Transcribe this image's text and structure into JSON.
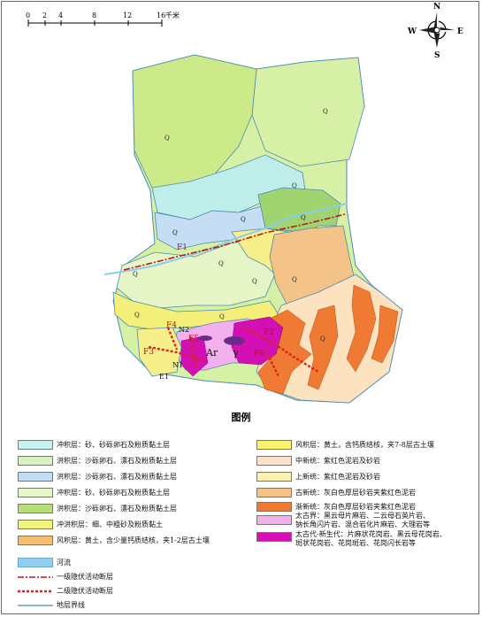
{
  "scale": {
    "ticks": [
      "0",
      "2",
      "4",
      "8",
      "12",
      "16"
    ],
    "unit": "千米"
  },
  "compass": {
    "n": "N",
    "s": "S",
    "e": "E",
    "w": "W"
  },
  "labels": {
    "q1": "Q",
    "q2": "Q",
    "q3": "Q",
    "q4": "Q",
    "q5": "Q",
    "q6": "Q",
    "q7": "Q",
    "q8": "Q",
    "q9": "Q",
    "q10": "Q",
    "q11": "Q",
    "q12": "Q",
    "q13": "Q",
    "ar": "Ar",
    "gamma": "γ",
    "f1": "F1",
    "f2": "F2",
    "f3": "F3",
    "f4": "F4",
    "f5": "F5",
    "f6": "F6",
    "n1": "N1",
    "n2": "N2",
    "e1": "E1"
  },
  "legend": {
    "title": "图例",
    "left": [
      {
        "label": "冲积层：砂、砂砾卵石及粉质黏土层",
        "color": "#c8f2ef"
      },
      {
        "label": "洪积层：沙砾卵石、漂石及粉质黏土层",
        "color": "#d8f0c2"
      },
      {
        "label": "洪积层：沙砾卵石、漂石及粉质黏土层",
        "color": "#c2ddf3"
      },
      {
        "label": "冲积层：砂、砂砾卵石及粉质黏土层",
        "color": "#e7f6c8"
      },
      {
        "label": "洪积层：沙砾卵石、漂石及粉质黏土层",
        "color": "#b6df7a"
      },
      {
        "label": "冲洪积层：细、中粗砂及粉质黏土",
        "color": "#eef47c"
      },
      {
        "label": "风积层：黄土，含少量钙质结核，夹1-2层古土壤",
        "color": "#f6bd6e"
      }
    ],
    "right": [
      {
        "label": "风积层：黄土，含钙质结核，夹7-8层古土壤",
        "color": "#fbf36b"
      },
      {
        "label": "中新统：紫红色泥岩及砂岩",
        "color": "#fbe2c8"
      },
      {
        "label": "上新统：紫红色泥岩及砂岩",
        "color": "#fdf1b2"
      },
      {
        "label": "古新统：灰白色厚层砂岩夹紫红色泥岩",
        "color": "#f4c388"
      },
      {
        "label": "渐新统：灰白色厚层砂岩夹紫红色泥岩",
        "color": "#ef7a33"
      },
      {
        "label": "太古界：黑云母片麻岩、二云母石英片岩、",
        "label2": "钠长角闪片岩、混合岩化片麻岩、大理岩等",
        "color": "#f4b0ec"
      },
      {
        "label": "太古代-新生代：片麻状花岗岩、黑云母花岗岩、",
        "label2": "斑状花岗岩、花岗斑岩、花岗闪长岩等",
        "color": "#d40fb4"
      }
    ],
    "bottom": [
      {
        "label": "河流",
        "color": "#93cdee"
      },
      {
        "label": "一级隐伏活动断层",
        "color": "#c0141a"
      },
      {
        "label": "二级隐伏活动断层",
        "color": "#d6251c"
      },
      {
        "label": "地层界线",
        "color": "#3c8dc4"
      }
    ]
  }
}
